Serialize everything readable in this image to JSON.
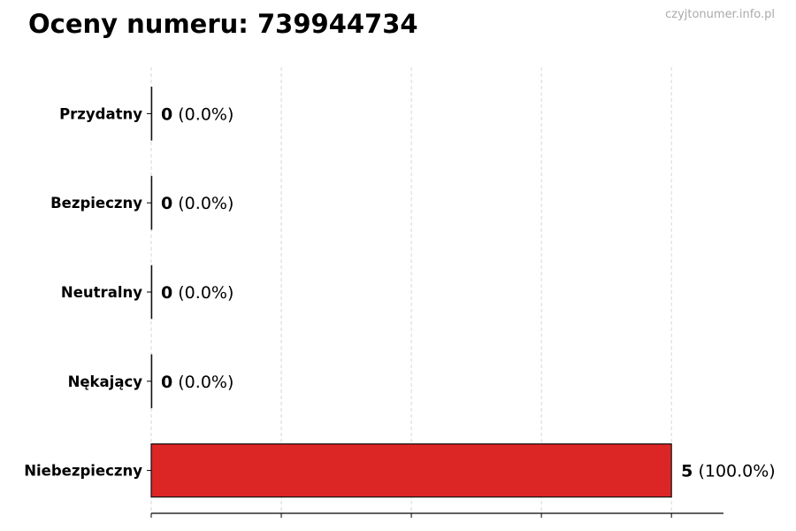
{
  "watermark": "czyjtonumer.info.pl",
  "chart_data": {
    "type": "bar",
    "orientation": "horizontal",
    "title": "Oceny numeru: 739944734",
    "categories": [
      "Przydatny",
      "Bezpieczny",
      "Neutralny",
      "Nękający",
      "Niebezpieczny"
    ],
    "values": [
      0,
      0,
      0,
      0,
      5
    ],
    "data_labels": [
      {
        "count": "0",
        "percent": "(0.0%)"
      },
      {
        "count": "0",
        "percent": "(0.0%)"
      },
      {
        "count": "0",
        "percent": "(0.0%)"
      },
      {
        "count": "0",
        "percent": "(0.0%)"
      },
      {
        "count": "5",
        "percent": "(100.0%)"
      }
    ],
    "xlim": [
      0,
      5.5
    ],
    "xticks": [
      0,
      1.25,
      2.5,
      3.75,
      5
    ],
    "xtick_labels_shown": false,
    "grid": "x, dashed",
    "bar_color": "#dc2626",
    "xlabel": "",
    "ylabel": ""
  }
}
